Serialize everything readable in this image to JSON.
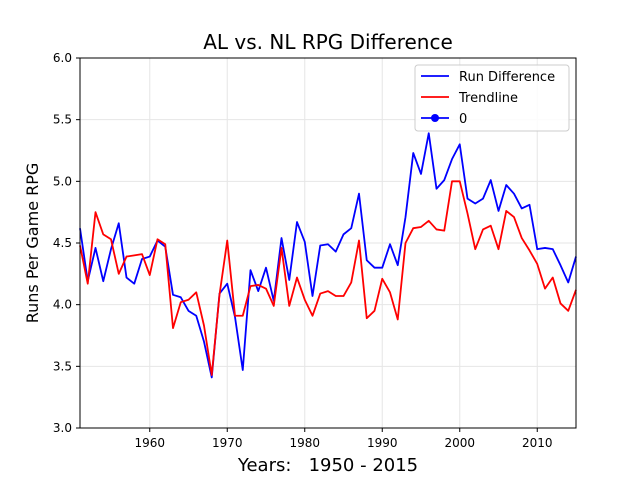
{
  "chart_data": {
    "type": "line",
    "title": "AL vs. NL RPG Difference",
    "xlabel": "Years:   1950 - 2015",
    "ylabel": "Runs Per Game RPG",
    "xlim": [
      1951,
      2015
    ],
    "ylim": [
      3.0,
      6.0
    ],
    "x_ticks": [
      1960,
      1970,
      1980,
      1990,
      2000,
      2010
    ],
    "y_ticks": [
      "3.0",
      "3.5",
      "4.0",
      "4.5",
      "5.0",
      "5.5",
      "6.0"
    ],
    "grid": true,
    "legend_position": "top-right",
    "x": [
      1951,
      1952,
      1953,
      1954,
      1955,
      1956,
      1957,
      1958,
      1959,
      1960,
      1961,
      1962,
      1963,
      1964,
      1965,
      1966,
      1967,
      1968,
      1969,
      1970,
      1971,
      1972,
      1973,
      1974,
      1975,
      1976,
      1977,
      1978,
      1979,
      1980,
      1981,
      1982,
      1983,
      1984,
      1985,
      1986,
      1987,
      1988,
      1989,
      1990,
      1991,
      1992,
      1993,
      1994,
      1995,
      1996,
      1997,
      1998,
      1999,
      2000,
      2001,
      2002,
      2003,
      2004,
      2005,
      2006,
      2007,
      2008,
      2009,
      2010,
      2011,
      2012,
      2013,
      2014,
      2015
    ],
    "series": [
      {
        "name": "Run Difference",
        "color": "#0000ff",
        "values": [
          4.62,
          4.19,
          4.46,
          4.19,
          4.45,
          4.66,
          4.22,
          4.17,
          4.37,
          4.39,
          4.52,
          4.47,
          4.08,
          4.06,
          3.95,
          3.91,
          3.7,
          3.41,
          4.09,
          4.17,
          3.9,
          3.47,
          4.28,
          4.11,
          4.3,
          4.03,
          4.54,
          4.2,
          4.67,
          4.51,
          4.07,
          4.48,
          4.49,
          4.43,
          4.57,
          4.62,
          4.9,
          4.36,
          4.3,
          4.3,
          4.49,
          4.32,
          4.71,
          5.23,
          5.06,
          5.39,
          4.94,
          5.01,
          5.18,
          5.3,
          4.86,
          4.82,
          4.86,
          5.01,
          4.76,
          4.97,
          4.9,
          4.78,
          4.81,
          4.45,
          4.46,
          4.45,
          4.32,
          4.18,
          4.39
        ]
      },
      {
        "name": "Trendline",
        "color": "#ff0000",
        "values": [
          4.48,
          4.17,
          4.75,
          4.57,
          4.53,
          4.25,
          4.39,
          4.4,
          4.41,
          4.24,
          4.53,
          4.49,
          3.81,
          4.02,
          4.04,
          4.1,
          3.83,
          3.43,
          4.08,
          4.52,
          3.91,
          3.91,
          4.15,
          4.16,
          4.13,
          3.99,
          4.46,
          3.99,
          4.22,
          4.04,
          3.91,
          4.09,
          4.11,
          4.07,
          4.07,
          4.18,
          4.52,
          3.89,
          3.95,
          4.21,
          4.1,
          3.88,
          4.5,
          4.62,
          4.63,
          4.68,
          4.61,
          4.6,
          5.0,
          5.0,
          4.74,
          4.45,
          4.61,
          4.64,
          4.45,
          4.76,
          4.71,
          4.54,
          4.44,
          4.33,
          4.13,
          4.22,
          4.01,
          3.95,
          4.12
        ]
      }
    ],
    "legend": [
      {
        "label": "Run Difference",
        "color": "#0000ff",
        "marker": false
      },
      {
        "label": "Trendline",
        "color": "#ff0000",
        "marker": false
      },
      {
        "label": "0",
        "color": "#0000ff",
        "marker": true
      }
    ]
  }
}
